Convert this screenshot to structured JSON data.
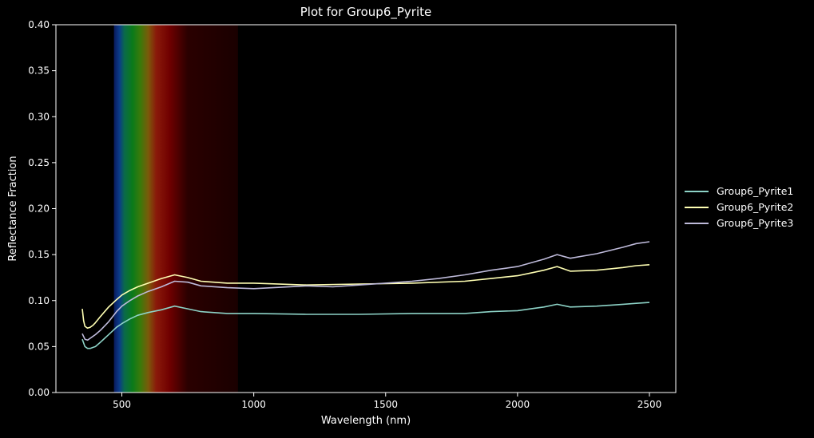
{
  "chart_data": {
    "type": "line",
    "title": "Plot for Group6_Pyrite",
    "xlabel": "Wavelength (nm)",
    "ylabel": "Reflectance Fraction",
    "xlim": [
      250,
      2600
    ],
    "ylim": [
      0.0,
      0.4
    ],
    "xticks": [
      500,
      1000,
      1500,
      2000,
      2500
    ],
    "xtick_labels": [
      "500",
      "1000",
      "1500",
      "2000",
      "2500"
    ],
    "yticks": [
      0.0,
      0.05,
      0.1,
      0.15,
      0.2,
      0.25,
      0.3,
      0.35,
      0.4
    ],
    "ytick_labels": [
      "0.00",
      "0.05",
      "0.10",
      "0.15",
      "0.20",
      "0.25",
      "0.30",
      "0.35",
      "0.40"
    ],
    "grid": false,
    "legend_position": "outside-right",
    "background": "#000000",
    "spectrum_band": {
      "description_colors": [
        "#0a1a5a",
        "#0b3a8a",
        "#0a6a4a",
        "#0a7a1a",
        "#3a7a0a",
        "#7a5a0a",
        "#8a1a0a",
        "#700000",
        "#2a0000",
        "#1a0000"
      ],
      "stops_nm": [
        470,
        490,
        510,
        540,
        570,
        600,
        630,
        680,
        750,
        940
      ]
    },
    "series": [
      {
        "name": "Group6_Pyrite1",
        "color": "#8dd3c7",
        "x": [
          350,
          360,
          370,
          380,
          390,
          400,
          420,
          450,
          480,
          500,
          530,
          560,
          600,
          650,
          700,
          750,
          800,
          900,
          1000,
          1200,
          1400,
          1600,
          1800,
          1900,
          2000,
          2050,
          2100,
          2150,
          2200,
          2300,
          2400,
          2450,
          2500
        ],
        "y": [
          0.058,
          0.05,
          0.048,
          0.048,
          0.049,
          0.05,
          0.055,
          0.063,
          0.071,
          0.075,
          0.08,
          0.084,
          0.087,
          0.09,
          0.094,
          0.091,
          0.088,
          0.086,
          0.086,
          0.085,
          0.085,
          0.086,
          0.086,
          0.088,
          0.089,
          0.091,
          0.093,
          0.096,
          0.093,
          0.094,
          0.096,
          0.097,
          0.098
        ]
      },
      {
        "name": "Group6_Pyrite2",
        "color": "#ffffb3",
        "x": [
          350,
          355,
          360,
          370,
          380,
          390,
          400,
          420,
          450,
          480,
          500,
          530,
          560,
          600,
          650,
          700,
          750,
          800,
          900,
          1000,
          1200,
          1400,
          1600,
          1800,
          1900,
          2000,
          2050,
          2100,
          2150,
          2200,
          2300,
          2400,
          2450,
          2500
        ],
        "y": [
          0.091,
          0.078,
          0.072,
          0.07,
          0.071,
          0.073,
          0.076,
          0.083,
          0.093,
          0.101,
          0.106,
          0.111,
          0.115,
          0.119,
          0.124,
          0.128,
          0.125,
          0.121,
          0.119,
          0.119,
          0.117,
          0.118,
          0.119,
          0.121,
          0.124,
          0.127,
          0.13,
          0.133,
          0.137,
          0.132,
          0.133,
          0.136,
          0.138,
          0.139
        ]
      },
      {
        "name": "Group6_Pyrite3",
        "color": "#bebada",
        "x": [
          350,
          360,
          370,
          380,
          390,
          400,
          420,
          450,
          480,
          500,
          530,
          560,
          600,
          650,
          700,
          750,
          800,
          900,
          1000,
          1200,
          1300,
          1400,
          1500,
          1600,
          1700,
          1800,
          1900,
          2000,
          2050,
          2100,
          2150,
          2200,
          2300,
          2400,
          2450,
          2500
        ],
        "y": [
          0.064,
          0.058,
          0.057,
          0.059,
          0.061,
          0.063,
          0.068,
          0.077,
          0.088,
          0.094,
          0.1,
          0.105,
          0.11,
          0.115,
          0.121,
          0.12,
          0.116,
          0.114,
          0.113,
          0.116,
          0.115,
          0.117,
          0.119,
          0.121,
          0.124,
          0.128,
          0.133,
          0.137,
          0.141,
          0.145,
          0.15,
          0.146,
          0.151,
          0.158,
          0.162,
          0.164
        ]
      }
    ]
  }
}
